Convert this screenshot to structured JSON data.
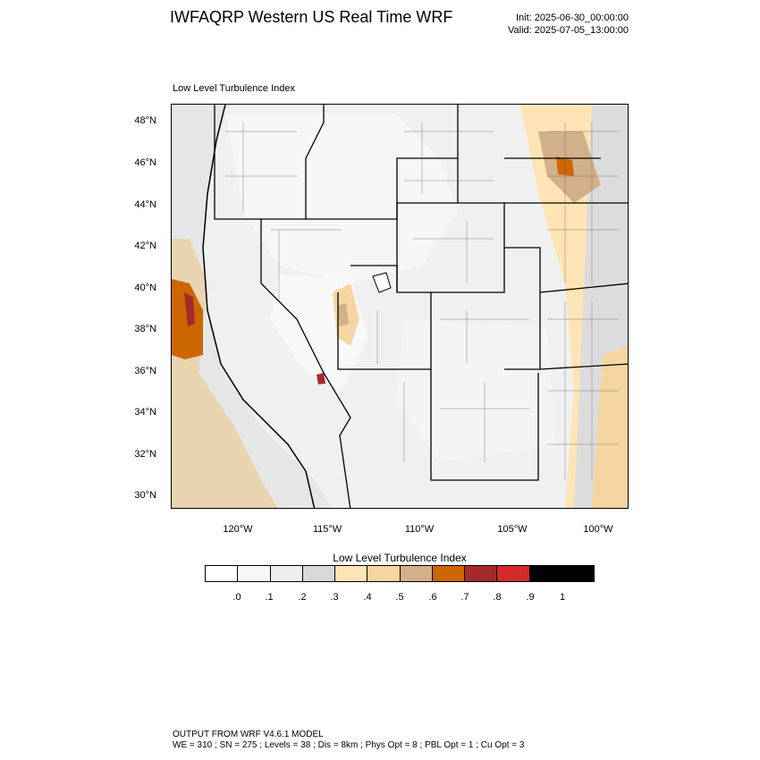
{
  "header": {
    "title": "IWFAQRP Western US Real Time WRF",
    "init": "Init: 2025-06-30_00:00:00",
    "valid": "Valid: 2025-07-05_13:00:00"
  },
  "map": {
    "field_label": "Low Level Turbulence Index",
    "lat_labels": [
      "48°N",
      "46°N",
      "44°N",
      "42°N",
      "40°N",
      "38°N",
      "36°N",
      "34°N",
      "32°N",
      "30°N"
    ],
    "lon_labels": [
      "120°W",
      "115°W",
      "110°W",
      "105°W",
      "100°W"
    ]
  },
  "colorbar": {
    "title": "Low Level Turbulence Index",
    "colors": [
      "#ffffff",
      "#f7f7f7",
      "#eeeeee",
      "#d9d9d9",
      "#ffe4b5",
      "#f5d5a0",
      "#d2b08a",
      "#cc6600",
      "#a52a2a",
      "#d42a2a",
      "#000000"
    ],
    "labels": [
      ".0",
      ".1",
      ".2",
      ".3",
      ".4",
      ".5",
      ".6",
      ".7",
      ".8",
      ".9",
      "1"
    ]
  },
  "footer": {
    "line1": "OUTPUT FROM WRF V4.6.1 MODEL",
    "line2": "WE = 310 ; SN = 275 ; Levels = 38 ; Dis = 8km ; Phys Opt = 8 ; PBL Opt = 1 ; Cu Opt = 3"
  }
}
